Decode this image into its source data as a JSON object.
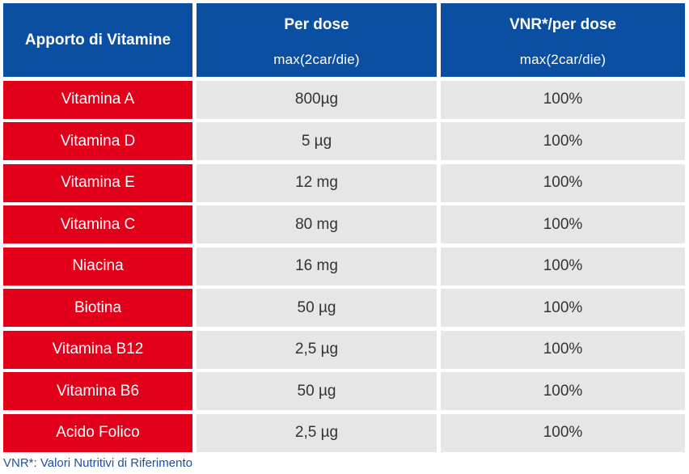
{
  "colors": {
    "header_bg": "#0b4fa3",
    "name_bg": "#e2001a",
    "value_bg": "#e6e6e6",
    "footnote": "#1f4fa0"
  },
  "table": {
    "headers": [
      {
        "main": "Apporto di Vitamine"
      },
      {
        "main": "Per dose",
        "sub": "max(2car/die)"
      },
      {
        "main": "VNR*/per dose",
        "sub": "max(2car/die)"
      }
    ],
    "rows": [
      {
        "name": "Vitamina A",
        "dose": "800µg",
        "vnr": "100%"
      },
      {
        "name": "Vitamina D",
        "dose": "5 µg",
        "vnr": "100%"
      },
      {
        "name": "Vitamina E",
        "dose": "12 mg",
        "vnr": "100%"
      },
      {
        "name": "Vitamina C",
        "dose": "80 mg",
        "vnr": "100%"
      },
      {
        "name": "Niacina",
        "dose": "16 mg",
        "vnr": "100%"
      },
      {
        "name": "Biotina",
        "dose": "50 µg",
        "vnr": "100%"
      },
      {
        "name": "Vitamina B12",
        "dose": "2,5 µg",
        "vnr": "100%"
      },
      {
        "name": "Vitamina B6",
        "dose": "50 µg",
        "vnr": "100%"
      },
      {
        "name": "Acido Folico",
        "dose": "2,5 µg",
        "vnr": "100%"
      }
    ]
  },
  "footnote": "VNR*: Valori Nutritivi di Riferimento"
}
